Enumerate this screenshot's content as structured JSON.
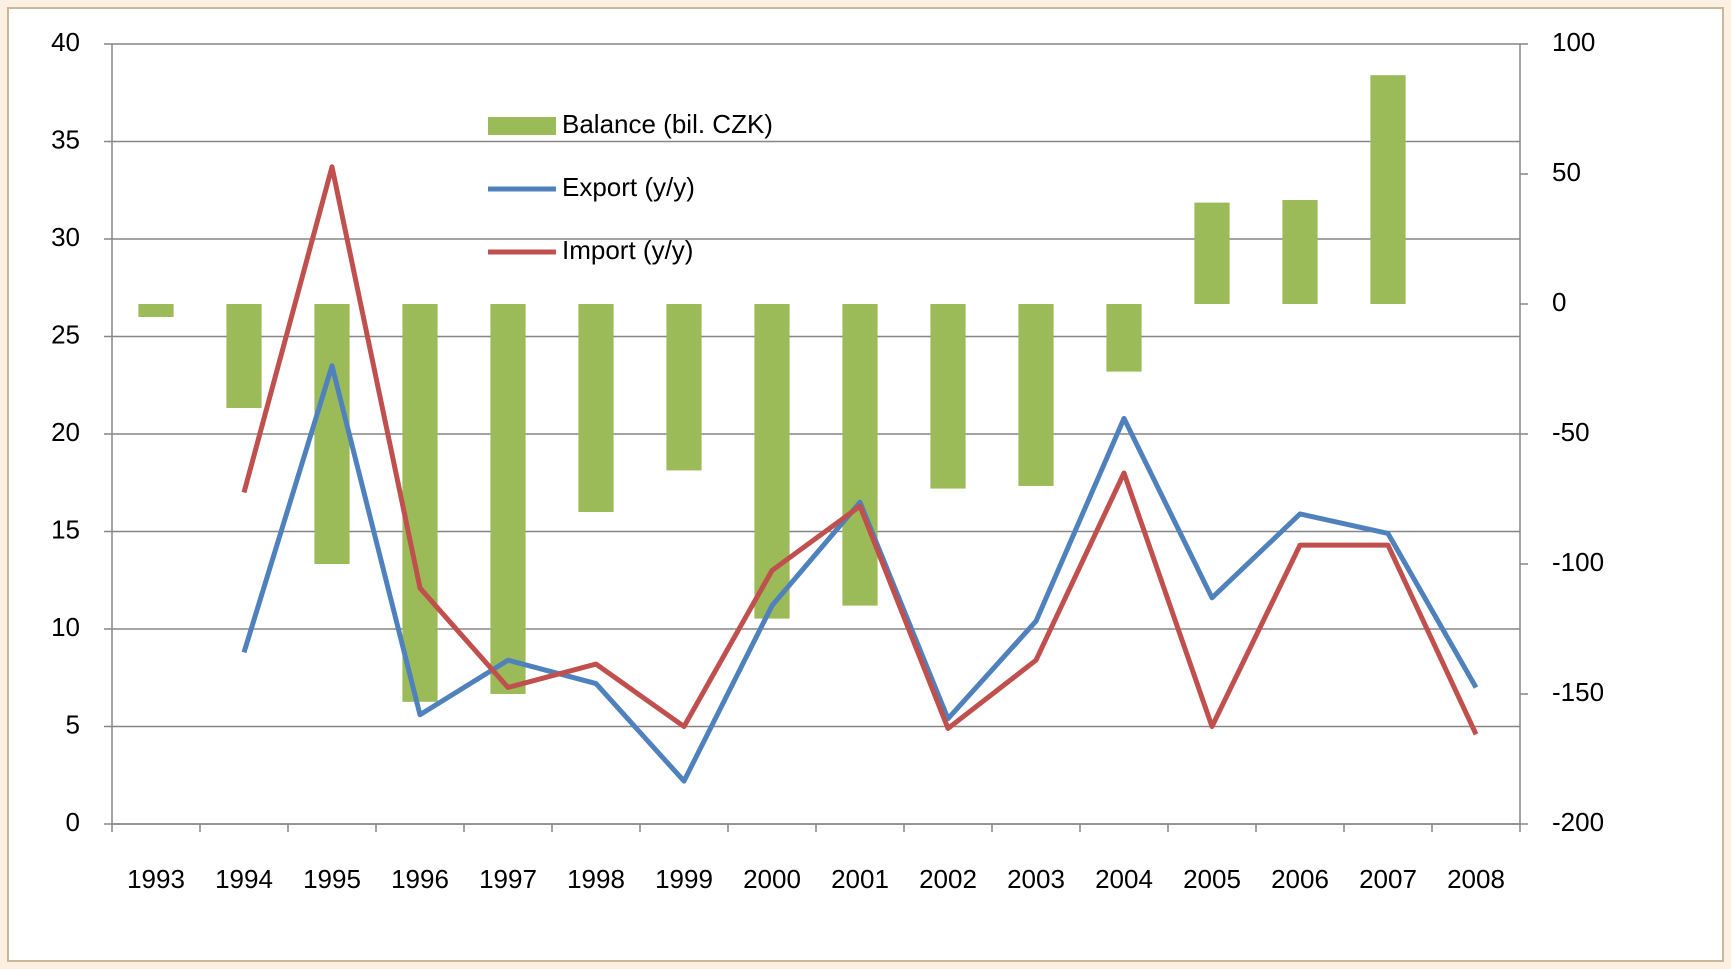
{
  "chart_data": {
    "type": "bar-line",
    "categories": [
      "1993",
      "1994",
      "1995",
      "1996",
      "1997",
      "1998",
      "1999",
      "2000",
      "2001",
      "2002",
      "2003",
      "2004",
      "2005",
      "2006",
      "2007",
      "2008"
    ],
    "series": [
      {
        "name": "Balance (bil. CZK)",
        "type": "bar",
        "axis": "y2",
        "color": "#9bbb59",
        "values": [
          -5,
          -40,
          -100,
          -153,
          -150,
          -80,
          -64,
          -121,
          -116,
          -71,
          -70,
          -26,
          39,
          40,
          88,
          null
        ]
      },
      {
        "name": "Export (y/y)",
        "type": "line",
        "color": "#4f81bd",
        "values": [
          null,
          8.8,
          23.5,
          5.6,
          8.4,
          7.2,
          2.2,
          11.2,
          16.5,
          5.4,
          10.4,
          20.8,
          11.6,
          15.9,
          14.9,
          7.0
        ]
      },
      {
        "name": "Import (y/y)",
        "type": "line",
        "color": "#c0504d",
        "values": [
          null,
          17.0,
          33.7,
          12.1,
          7.0,
          8.2,
          5.0,
          13.0,
          16.3,
          4.9,
          8.4,
          18.0,
          5.0,
          14.3,
          14.3,
          4.6
        ]
      }
    ],
    "ylim": [
      0,
      40
    ],
    "yticks": [
      0,
      5,
      10,
      15,
      20,
      25,
      30,
      35,
      40
    ],
    "y2lim": [
      -200,
      100
    ],
    "y2ticks": [
      -200,
      -150,
      -100,
      -50,
      0,
      50,
      100
    ],
    "grid": true,
    "legend": "top-center"
  }
}
